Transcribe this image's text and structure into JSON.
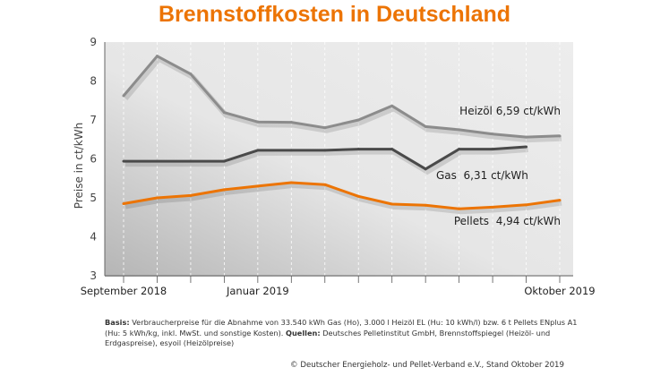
{
  "title": "Brennstoffkosten in Deutschland",
  "chart_data": {
    "type": "line",
    "title": "Brennstoffkosten in Deutschland",
    "ylabel": "Preise in ct/kWh",
    "xlabel": "",
    "ylim": [
      3,
      9
    ],
    "yticks": [
      3,
      4,
      5,
      6,
      7,
      8,
      9
    ],
    "x": [
      "2018-09",
      "2018-10",
      "2018-11",
      "2018-12",
      "2019-01",
      "2019-02",
      "2019-03",
      "2019-04",
      "2019-05",
      "2019-06",
      "2019-07",
      "2019-08",
      "2019-09",
      "2019-10"
    ],
    "xtick_labels": [
      {
        "x": "2018-09",
        "label": "September 2018"
      },
      {
        "x": "2019-01",
        "label": "Januar 2019"
      },
      {
        "x": "2019-10",
        "label": "Oktober 2019"
      }
    ],
    "grid": "vertical dashed",
    "series": [
      {
        "name": "Heizöl",
        "label": "Heizöl 6,59 ct/kWh",
        "color": "#8c8c8c",
        "values": [
          7.62,
          8.64,
          8.18,
          7.19,
          6.95,
          6.94,
          6.8,
          7.0,
          7.36,
          6.83,
          6.75,
          6.64,
          6.56,
          6.59
        ]
      },
      {
        "name": "Gas",
        "label": "Gas  6,31 ct/kWh",
        "color": "#4a4a4a",
        "values": [
          5.94,
          5.94,
          5.94,
          5.94,
          6.22,
          6.22,
          6.22,
          6.25,
          6.25,
          5.74,
          6.25,
          6.25,
          6.31,
          null
        ]
      },
      {
        "name": "Pellets",
        "label": "Pellets  4,94 ct/kWh",
        "color": "#ec7404",
        "values": [
          4.85,
          5.0,
          5.06,
          5.21,
          5.3,
          5.39,
          5.34,
          5.04,
          4.84,
          4.81,
          4.72,
          4.76,
          4.82,
          4.94
        ]
      }
    ]
  },
  "footer": {
    "basis_label": "Basis:",
    "basis_text": " Verbraucherpreise für die Abnahme von 33.540 kWh Gas (Ho), 3.000 l Heizöl EL (Hu: 10 kWh/l) bzw. 6 t Pellets ENplus A1 (Hu: 5 kWh/kg, inkl. MwSt. und sonstige Kosten). ",
    "sources_label": "Quellen:",
    "sources_text": " Deutsches Pelletinstitut GmbH, Brennstoffspiegel (Heizöl- und Erdgaspreise), esyoil (Heizölpreise)",
    "credit": "© Deutscher Energieholz- und Pellet-Verband e.V., Stand Oktober 2019"
  }
}
